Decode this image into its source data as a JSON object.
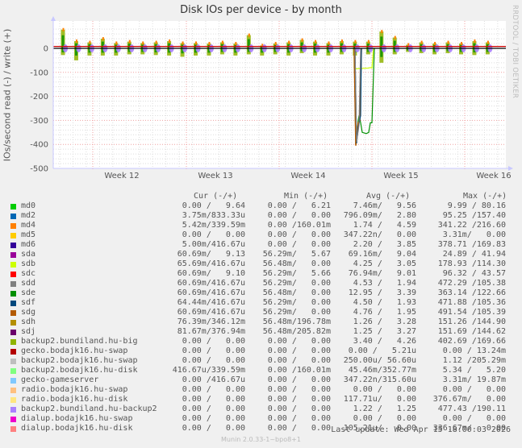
{
  "header": {
    "title": "Disk IOs per device - by month",
    "watermark": "RRDTOOL / TOBI OETIKER",
    "ylabel": "IOs/second read (-) / write (+)"
  },
  "axes": {
    "y_ticks": [
      "0",
      "-100",
      "-200",
      "-300",
      "-400",
      "-500"
    ],
    "x_ticks": [
      "Week 12",
      "Week 13",
      "Week 14",
      "Week 15",
      "Week 16"
    ]
  },
  "legend": {
    "headers": {
      "cur": "Cur (-/+)",
      "min": "Min (-/+)",
      "avg": "Avg (-/+)",
      "max": "Max (-/+)"
    },
    "rows": [
      {
        "name": "md0",
        "color": "#00cc00",
        "cur": "0.00 /   9.64",
        "min": "0.00 /   6.21",
        "avg": "7.46m/   9.56",
        "max": "9.99 / 80.16"
      },
      {
        "name": "md2",
        "color": "#0066b3",
        "cur": "3.75m/833.33u",
        "min": "0.00 /   0.00",
        "avg": "796.09m/   2.80",
        "max": "95.25 /157.40"
      },
      {
        "name": "md4",
        "color": "#ff8000",
        "cur": "5.42m/339.59m",
        "min": "0.00 /160.01m",
        "avg": "1.74 /   4.59",
        "max": "341.22 /216.60"
      },
      {
        "name": "md5",
        "color": "#ffcc00",
        "cur": "0.00 /   0.00",
        "min": "0.00 /   0.00",
        "avg": "347.22n/   0.00",
        "max": "3.31m/   0.00"
      },
      {
        "name": "md6",
        "color": "#330099",
        "cur": "5.00m/416.67u",
        "min": "0.00 /   0.00",
        "avg": "2.20 /   3.85",
        "max": "378.71 /169.83"
      },
      {
        "name": "sda",
        "color": "#990099",
        "cur": "60.69m/   9.13",
        "min": "56.29m/   5.67",
        "avg": "69.16m/   9.04",
        "max": "24.89 / 41.94"
      },
      {
        "name": "sdb",
        "color": "#ccff00",
        "cur": "65.69m/416.67u",
        "min": "56.48m/   0.00",
        "avg": "4.25 /   3.05",
        "max": "178.93 /114.30"
      },
      {
        "name": "sdc",
        "color": "#ff0000",
        "cur": "60.69m/   9.10",
        "min": "56.29m/   5.66",
        "avg": "76.94m/   9.01",
        "max": "96.32 / 43.57"
      },
      {
        "name": "sdd",
        "color": "#808080",
        "cur": "60.69m/416.67u",
        "min": "56.29m/   0.00",
        "avg": "4.53 /   1.94",
        "max": "472.29 /105.38"
      },
      {
        "name": "sde",
        "color": "#008f00",
        "cur": "60.69m/416.67u",
        "min": "56.48m/   0.00",
        "avg": "12.95 /   3.39",
        "max": "363.14 /122.66"
      },
      {
        "name": "sdf",
        "color": "#00487d",
        "cur": "64.44m/416.67u",
        "min": "56.29m/   0.00",
        "avg": "4.50 /   1.93",
        "max": "471.88 /105.36"
      },
      {
        "name": "sdg",
        "color": "#b35a00",
        "cur": "60.69m/416.67u",
        "min": "56.29m/   0.00",
        "avg": "4.76 /   1.95",
        "max": "491.54 /105.39"
      },
      {
        "name": "sdh",
        "color": "#b38f00",
        "cur": "76.39m/346.12m",
        "min": "56.48m/196.78m",
        "avg": "1.26 /   3.28",
        "max": "151.26 /144.90"
      },
      {
        "name": "sdj",
        "color": "#6b006b",
        "cur": "81.67m/376.94m",
        "min": "56.48m/205.82m",
        "avg": "1.25 /   3.27",
        "max": "151.69 /144.62"
      },
      {
        "name": "backup2.bundiland.hu-big",
        "color": "#8fb300",
        "cur": "0.00 /   0.00",
        "min": "0.00 /   0.00",
        "avg": "3.40 /   4.26",
        "max": "402.69 /169.66"
      },
      {
        "name": "gecko.bodajk16.hu-swap",
        "color": "#b30000",
        "cur": "0.00 /   0.00",
        "min": "0.00 /   0.00",
        "avg": "0.00 /   5.21u",
        "max": "0.00 / 13.24m"
      },
      {
        "name": "backup2.bodajk16.hu-swap",
        "color": "#bebebe",
        "cur": "0.00 /   0.00",
        "min": "0.00 /   0.00",
        "avg": "250.00u/ 56.60u",
        "max": "1.12 /205.29m"
      },
      {
        "name": "backup2.bodajk16.hu-disk",
        "color": "#80ff80",
        "cur": "416.67u/339.59m",
        "min": "0.00 /160.01m",
        "avg": "45.46m/352.77m",
        "max": "5.34 /   5.20"
      },
      {
        "name": "gecko-gameserver",
        "color": "#80c9ff",
        "cur": "0.00 /416.67u",
        "min": "0.00 /   0.00",
        "avg": "347.22n/315.60u",
        "max": "3.31m/ 19.87m"
      },
      {
        "name": "radio.bodajk16.hu-swap",
        "color": "#ffc080",
        "cur": "0.00 /   0.00",
        "min": "0.00 /   0.00",
        "avg": "0.00 /   0.00",
        "max": "0.00 /   0.00"
      },
      {
        "name": "radio.bodajk16.hu-disk",
        "color": "#ffe680",
        "cur": "0.00 /   0.00",
        "min": "0.00 /   0.00",
        "avg": "117.71u/   0.00",
        "max": "376.67m/   0.00"
      },
      {
        "name": "backup2.bundiland.hu-backup2",
        "color": "#aa80ff",
        "cur": "0.00 /   0.00",
        "min": "0.00 /   0.00",
        "avg": "1.22 /   1.25",
        "max": "477.43 /190.11"
      },
      {
        "name": "dialup.bodajk16.hu-swap",
        "color": "#ee00cc",
        "cur": "0.00 /   0.00",
        "min": "0.00 /   0.00",
        "avg": "0.00 /   0.00",
        "max": "0.00 /   0.00"
      },
      {
        "name": "dialup.bodajk16.hu-disk",
        "color": "#ff8080",
        "cur": "0.00 /   0.00",
        "min": "0.00 /   0.00",
        "avg": "105.21u/   0.00",
        "max": "336.67m/   0.00"
      }
    ]
  },
  "footer": {
    "last_update": "Last update: Wed Apr 15 18:00:03 2026",
    "munin_version": "Munin 2.0.33-1~bpo8+1"
  },
  "chart_data": {
    "type": "line",
    "title": "Disk IOs per device - by month",
    "xlabel": "",
    "ylabel": "IOs/second read (-) / write (+)",
    "ylim": [
      -500,
      90
    ],
    "y_ticks": [
      0,
      -100,
      -200,
      -300,
      -400,
      -500
    ],
    "x_ticks": [
      "Week 12",
      "Week 13",
      "Week 14",
      "Week 15",
      "Week 16"
    ],
    "grid": true,
    "legend_position": "bottom",
    "description": "Daily periodic spikes for all devices roughly between -50 and +80 IOs/s; large read dip in early Week 15 down to about -400 (sdg, sdf, sdd, md4) and sde around -360 for ~1 day; sdb around -80.",
    "series": [
      {
        "name": "md0",
        "cur": [
          0.0,
          9.64
        ],
        "min": [
          0.0,
          6.21
        ],
        "avg": [
          0.00746,
          9.56
        ],
        "max": [
          9.99,
          80.16
        ]
      },
      {
        "name": "md2",
        "cur": [
          0.00375,
          0.00083333
        ],
        "min": [
          0.0,
          0.0
        ],
        "avg": [
          0.79609,
          2.8
        ],
        "max": [
          95.25,
          157.4
        ]
      },
      {
        "name": "md4",
        "cur": [
          0.00542,
          0.33959
        ],
        "min": [
          0.0,
          0.16001
        ],
        "avg": [
          1.74,
          4.59
        ],
        "max": [
          341.22,
          216.6
        ]
      },
      {
        "name": "md5",
        "cur": [
          0.0,
          0.0
        ],
        "min": [
          0.0,
          0.0
        ],
        "avg": [
          3.4722e-07,
          0.0
        ],
        "max": [
          0.00331,
          0.0
        ]
      },
      {
        "name": "md6",
        "cur": [
          0.005,
          0.00041667
        ],
        "min": [
          0.0,
          0.0
        ],
        "avg": [
          2.2,
          3.85
        ],
        "max": [
          378.71,
          169.83
        ]
      },
      {
        "name": "sda",
        "cur": [
          0.06069,
          9.13
        ],
        "min": [
          0.05629,
          5.67
        ],
        "avg": [
          0.06916,
          9.04
        ],
        "max": [
          24.89,
          41.94
        ]
      },
      {
        "name": "sdb",
        "cur": [
          0.06569,
          0.00041667
        ],
        "min": [
          0.05648,
          0.0
        ],
        "avg": [
          4.25,
          3.05
        ],
        "max": [
          178.93,
          114.3
        ]
      },
      {
        "name": "sdc",
        "cur": [
          0.06069,
          9.1
        ],
        "min": [
          0.05629,
          5.66
        ],
        "avg": [
          0.07694,
          9.01
        ],
        "max": [
          96.32,
          43.57
        ]
      },
      {
        "name": "sdd",
        "cur": [
          0.06069,
          0.00041667
        ],
        "min": [
          0.05629,
          0.0
        ],
        "avg": [
          4.53,
          1.94
        ],
        "max": [
          472.29,
          105.38
        ]
      },
      {
        "name": "sde",
        "cur": [
          0.06069,
          0.00041667
        ],
        "min": [
          0.05648,
          0.0
        ],
        "avg": [
          12.95,
          3.39
        ],
        "max": [
          363.14,
          122.66
        ]
      },
      {
        "name": "sdf",
        "cur": [
          0.06444,
          0.00041667
        ],
        "min": [
          0.05629,
          0.0
        ],
        "avg": [
          4.5,
          1.93
        ],
        "max": [
          471.88,
          105.36
        ]
      },
      {
        "name": "sdg",
        "cur": [
          0.06069,
          0.00041667
        ],
        "min": [
          0.05629,
          0.0
        ],
        "avg": [
          4.76,
          1.95
        ],
        "max": [
          491.54,
          105.39
        ]
      },
      {
        "name": "sdh",
        "cur": [
          0.07639,
          0.34612
        ],
        "min": [
          0.05648,
          0.19678
        ],
        "avg": [
          1.26,
          3.28
        ],
        "max": [
          151.26,
          144.9
        ]
      },
      {
        "name": "sdj",
        "cur": [
          0.08167,
          0.37694
        ],
        "min": [
          0.05648,
          0.20582
        ],
        "avg": [
          1.25,
          3.27
        ],
        "max": [
          151.69,
          144.62
        ]
      },
      {
        "name": "backup2.bundiland.hu-big",
        "cur": [
          0,
          0
        ],
        "min": [
          0,
          0
        ],
        "avg": [
          3.4,
          4.26
        ],
        "max": [
          402.69,
          169.66
        ]
      },
      {
        "name": "gecko.bodajk16.hu-swap",
        "cur": [
          0,
          0
        ],
        "min": [
          0,
          0
        ],
        "avg": [
          0,
          5.21e-06
        ],
        "max": [
          0,
          0.01324
        ]
      },
      {
        "name": "backup2.bodajk16.hu-swap",
        "cur": [
          0,
          0
        ],
        "min": [
          0,
          0
        ],
        "avg": [
          0.00025,
          5.66e-05
        ],
        "max": [
          1.12,
          0.20529
        ]
      },
      {
        "name": "backup2.bodajk16.hu-disk",
        "cur": [
          0.00041667,
          0.33959
        ],
        "min": [
          0,
          0.16001
        ],
        "avg": [
          0.04546,
          0.35277
        ],
        "max": [
          5.34,
          5.2
        ]
      },
      {
        "name": "gecko-gameserver",
        "cur": [
          0,
          0.00041667
        ],
        "min": [
          0,
          0
        ],
        "avg": [
          3.4722e-07,
          0.0003156
        ],
        "max": [
          0.00331,
          0.01987
        ]
      },
      {
        "name": "radio.bodajk16.hu-swap",
        "cur": [
          0,
          0
        ],
        "min": [
          0,
          0
        ],
        "avg": [
          0,
          0
        ],
        "max": [
          0,
          0
        ]
      },
      {
        "name": "radio.bodajk16.hu-disk",
        "cur": [
          0,
          0
        ],
        "min": [
          0,
          0
        ],
        "avg": [
          0.00011771,
          0
        ],
        "max": [
          0.37667,
          0
        ]
      },
      {
        "name": "backup2.bundiland.hu-backup2",
        "cur": [
          0,
          0
        ],
        "min": [
          0,
          0
        ],
        "avg": [
          1.22,
          1.25
        ],
        "max": [
          477.43,
          190.11
        ]
      },
      {
        "name": "dialup.bodajk16.hu-swap",
        "cur": [
          0,
          0
        ],
        "min": [
          0,
          0
        ],
        "avg": [
          0,
          0
        ],
        "max": [
          0,
          0
        ]
      },
      {
        "name": "dialup.bodajk16.hu-disk",
        "cur": [
          0,
          0
        ],
        "min": [
          0,
          0
        ],
        "avg": [
          0.00010521,
          0
        ],
        "max": [
          0.33667,
          0
        ]
      }
    ]
  }
}
